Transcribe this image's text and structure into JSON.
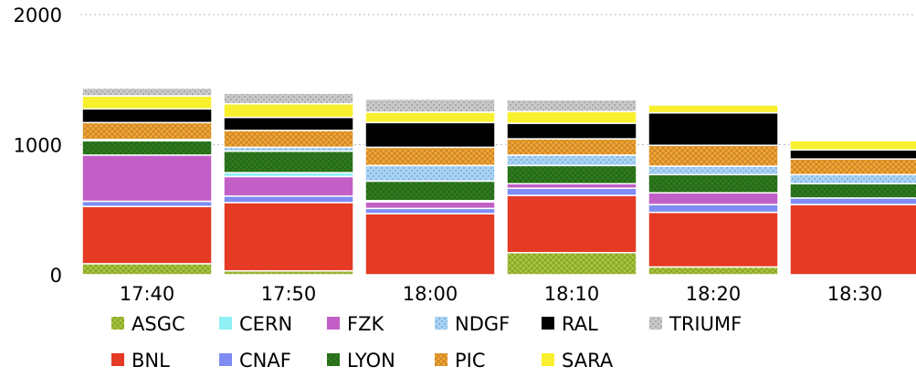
{
  "chart_data": {
    "type": "bar",
    "stacked": true,
    "title": "",
    "xlabel": "",
    "ylabel": "",
    "ylim": [
      0,
      2000
    ],
    "yticks": [
      "0",
      "1000",
      "2000"
    ],
    "grid": "dashed-horizontal",
    "legend_position": "bottom",
    "categories": [
      "17:40",
      "17:50",
      "18:00",
      "18:10",
      "18:20",
      "18:30"
    ],
    "series": [
      {
        "name": "ASGC",
        "color": "#a9c73a",
        "pattern": "crosshatch",
        "values": [
          85,
          30,
          0,
          170,
          60,
          0
        ]
      },
      {
        "name": "BNL",
        "color": "#e53a24",
        "pattern": "solid",
        "values": [
          440,
          525,
          470,
          440,
          420,
          540
        ]
      },
      {
        "name": "CNAF",
        "color": "#7f8cf3",
        "pattern": "solid",
        "values": [
          40,
          50,
          40,
          55,
          60,
          50
        ]
      },
      {
        "name": "FZK",
        "color": "#c25fc7",
        "pattern": "solid",
        "values": [
          355,
          150,
          50,
          35,
          90,
          0
        ]
      },
      {
        "name": "CERN",
        "color": "#8ff0f5",
        "pattern": "solid",
        "values": [
          0,
          30,
          10,
          0,
          0,
          0
        ]
      },
      {
        "name": "LYON",
        "color": "#2e7d1e",
        "pattern": "crosshatch",
        "values": [
          110,
          165,
          150,
          140,
          140,
          110
        ]
      },
      {
        "name": "NDGF",
        "color": "#a6d3f7",
        "pattern": "dotted",
        "values": [
          10,
          30,
          120,
          80,
          65,
          70
        ]
      },
      {
        "name": "PIC",
        "color": "#f5a533",
        "pattern": "crosshatch",
        "values": [
          130,
          130,
          140,
          125,
          160,
          120
        ]
      },
      {
        "name": "RAL",
        "color": "#000000",
        "pattern": "solid",
        "values": [
          105,
          100,
          190,
          120,
          250,
          70
        ]
      },
      {
        "name": "SARA",
        "color": "#f8ef2e",
        "pattern": "solid",
        "values": [
          100,
          105,
          80,
          90,
          60,
          70
        ]
      },
      {
        "name": "TRIUMF",
        "color": "#c8c8c8",
        "pattern": "dotted",
        "values": [
          60,
          80,
          100,
          90,
          0,
          0
        ]
      }
    ],
    "legend_rows": [
      [
        "ASGC",
        "CERN",
        "FZK",
        "NDGF",
        "RAL",
        "TRIUMF"
      ],
      [
        "BNL",
        "CNAF",
        "LYON",
        "PIC",
        "SARA"
      ]
    ]
  }
}
